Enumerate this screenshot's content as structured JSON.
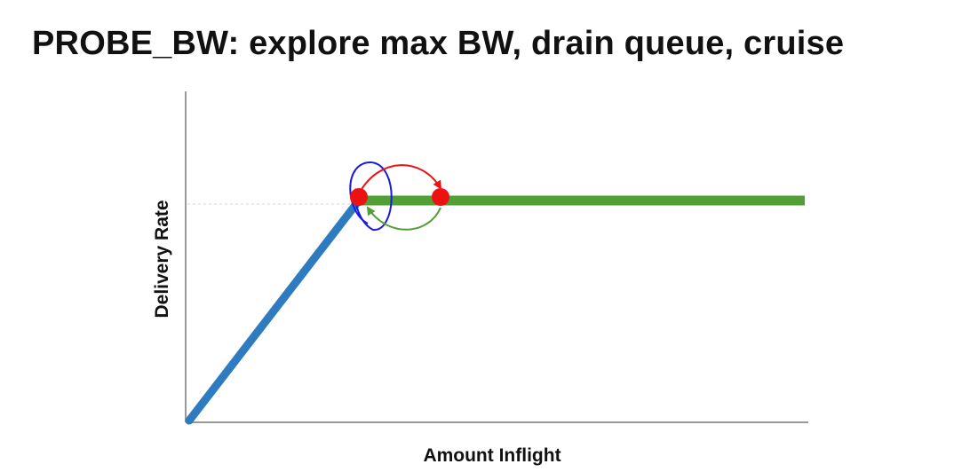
{
  "slide": {
    "title": "PROBE_BW: explore max BW, drain queue, cruise"
  },
  "diagram": {
    "xlabel": "Amount Inflight",
    "ylabel": "Delivery Rate",
    "colors": {
      "axis": "#999999",
      "ramp": "#2e7cbf",
      "plateau": "#52a035",
      "operating_point": "#ee1111",
      "explore_arrow": "#ee1111",
      "drain_arrow": "#1a1adc",
      "cruise_arrow": "#52a035",
      "guide_line": "#cccccc"
    }
  }
}
